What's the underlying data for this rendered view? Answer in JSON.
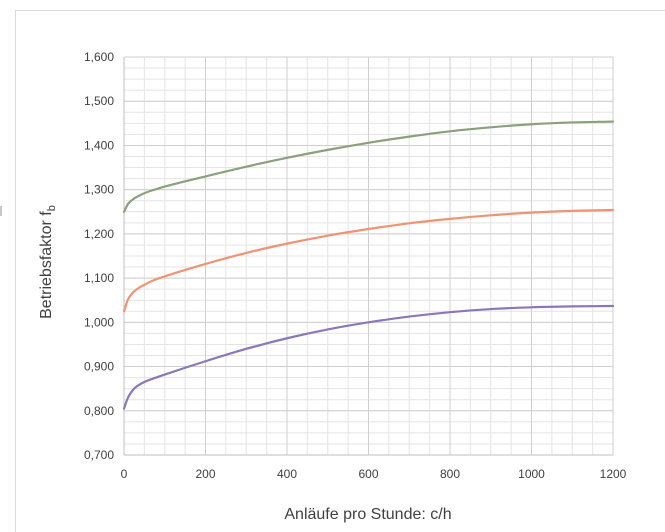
{
  "chart_data": {
    "type": "line",
    "title": "",
    "xlabel": "Anläufe pro Stunde: c/h",
    "ylabel": "Betriebsfaktor f",
    "ylabel_subscript": "b",
    "xlim": [
      0,
      1200
    ],
    "ylim": [
      0.7,
      1.6
    ],
    "x_ticks": [
      0,
      200,
      400,
      600,
      800,
      1000,
      1200
    ],
    "x_tick_labels": [
      "0",
      "200",
      "400",
      "600",
      "800",
      "1000",
      "1200"
    ],
    "y_ticks": [
      0.7,
      0.8,
      0.9,
      1.0,
      1.1,
      1.2,
      1.3,
      1.4,
      1.5,
      1.6
    ],
    "y_tick_labels": [
      "0,700",
      "0,800",
      "0,900",
      "1,000",
      "1,100",
      "1,200",
      "1,300",
      "1,400",
      "1,500",
      "1,600"
    ],
    "grid": true,
    "minor_grid": true,
    "legend": "none",
    "x": [
      0,
      10,
      25,
      50,
      75,
      100,
      200,
      300,
      400,
      500,
      600,
      700,
      800,
      900,
      1000,
      1100,
      1200
    ],
    "series": [
      {
        "color": "#8aa17c",
        "values": [
          1.25,
          1.268,
          1.28,
          1.292,
          1.3,
          1.307,
          1.33,
          1.352,
          1.372,
          1.39,
          1.406,
          1.42,
          1.432,
          1.441,
          1.448,
          1.452,
          1.454
        ]
      },
      {
        "color": "#ee9473",
        "values": [
          1.025,
          1.052,
          1.07,
          1.085,
          1.096,
          1.104,
          1.132,
          1.157,
          1.178,
          1.196,
          1.211,
          1.224,
          1.234,
          1.242,
          1.248,
          1.252,
          1.254
        ]
      },
      {
        "color": "#8b78b9",
        "values": [
          0.805,
          0.83,
          0.85,
          0.865,
          0.874,
          0.882,
          0.912,
          0.94,
          0.964,
          0.984,
          1.0,
          1.013,
          1.023,
          1.03,
          1.034,
          1.036,
          1.037
        ]
      }
    ]
  }
}
